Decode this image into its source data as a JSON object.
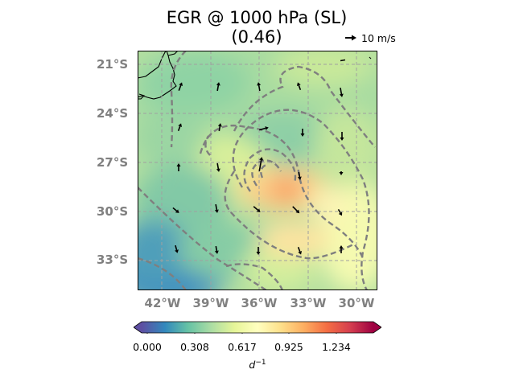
{
  "title": {
    "line1": "EGR @ 1000 hPa (SL)",
    "line2": "(0.46)"
  },
  "quiver_key": {
    "label": "10 m/s",
    "speed_ms": 10
  },
  "map": {
    "lat_labels": [
      "21°S",
      "24°S",
      "27°S",
      "30°S",
      "33°S"
    ],
    "lon_labels": [
      "42°W",
      "39°W",
      "36°W",
      "33°W",
      "30°W"
    ],
    "lon_range_deg": [
      -43.5,
      -29
    ],
    "lat_range_deg": [
      -20,
      -34.5
    ],
    "gridlines": true,
    "coastline": true,
    "contour_style": "grey dashed"
  },
  "colorbar": {
    "ticks": [
      "0.000",
      "0.308",
      "0.617",
      "0.925",
      "1.234"
    ],
    "units_base": "d",
    "units_exp": "−1",
    "colormap": "Spectral_r",
    "colors": [
      "#5e4fa2",
      "#3288bd",
      "#66c2a5",
      "#abdda4",
      "#e6f598",
      "#ffffbf",
      "#fee08b",
      "#fdae61",
      "#f46d43",
      "#d53e4f",
      "#9e0142"
    ]
  }
}
